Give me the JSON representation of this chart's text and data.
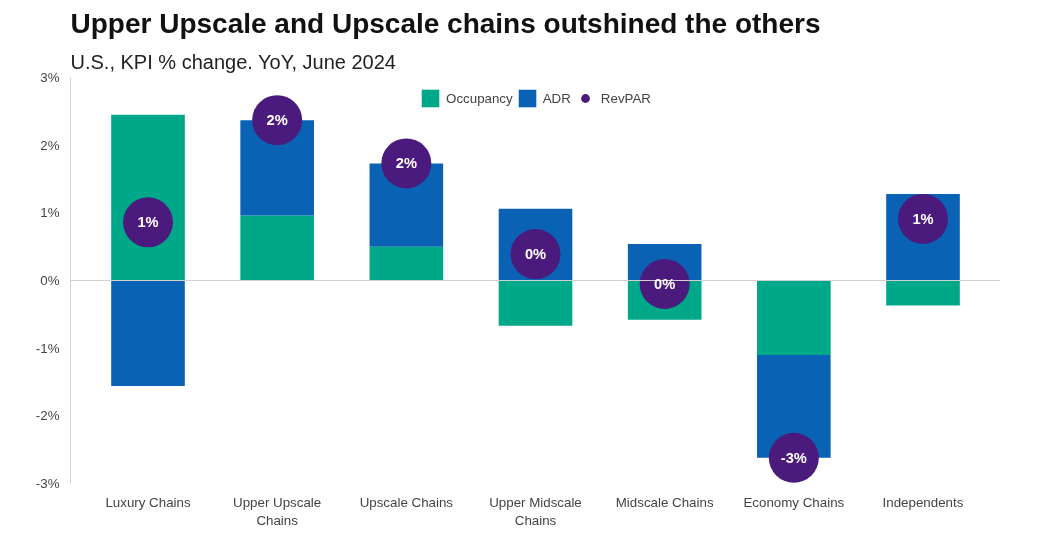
{
  "chart_data": {
    "type": "bar",
    "stacked": true,
    "title": "Upper Upscale and Upscale chains outshined the others",
    "subtitle": "U.S., KPI % change. YoY, June 2024",
    "categories": [
      "Luxury Chains",
      "Upper Upscale Chains",
      "Upscale Chains",
      "Upper Midscale Chains",
      "Midscale Chains",
      "Economy Chains",
      "Independents"
    ],
    "series": [
      {
        "name": "Occupancy",
        "color": "#00a88a",
        "values": [
          2.45,
          0.96,
          0.5,
          -0.67,
          -0.58,
          -1.1,
          -0.37
        ]
      },
      {
        "name": "ADR",
        "color": "#0a62b4",
        "values": [
          -1.56,
          1.41,
          1.23,
          1.06,
          0.54,
          -1.52,
          1.28
        ]
      },
      {
        "name": "RevPAR",
        "type": "scatter",
        "color": "#4a1a7c",
        "marker": "circle",
        "values": [
          0.86,
          2.37,
          1.73,
          0.39,
          -0.05,
          -2.62,
          0.91
        ],
        "value_labels": [
          "1%",
          "2%",
          "2%",
          "0%",
          "0%",
          "-3%",
          "1%"
        ]
      }
    ],
    "ylim": [
      -3,
      3
    ],
    "yticks": [
      {
        "value": -3,
        "label": "-3%"
      },
      {
        "value": -2,
        "label": "-2%"
      },
      {
        "value": -1,
        "label": "-1%"
      },
      {
        "value": 0,
        "label": "0%"
      },
      {
        "value": 1,
        "label": "1%"
      },
      {
        "value": 2,
        "label": "2%"
      },
      {
        "value": 3,
        "label": "3%"
      }
    ],
    "ref_lines": [
      {
        "axis": "y",
        "value": 0,
        "color": "#d0d0d0"
      }
    ],
    "grid": false,
    "legend": "top"
  }
}
